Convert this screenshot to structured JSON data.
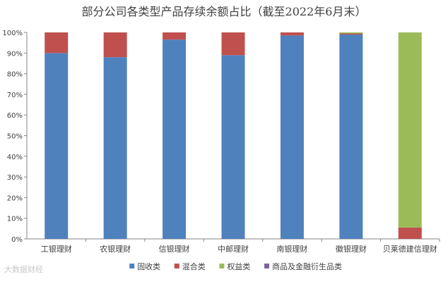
{
  "watermark": "大数据财经",
  "chart_data": {
    "type": "bar",
    "stacked": true,
    "title": "部分公司各类型产品存续余额占比（截至2022年6月末）",
    "xlabel": "",
    "ylabel": "",
    "ylim": [
      0,
      100
    ],
    "yticks": [
      "0%",
      "10%",
      "20%",
      "30%",
      "40%",
      "50%",
      "60%",
      "70%",
      "80%",
      "90%",
      "100%"
    ],
    "grid": false,
    "legend_position": "bottom",
    "categories": [
      "工银理财",
      "农银理财",
      "信银理财",
      "中邮理财",
      "南银理财",
      "徽银理财",
      "贝莱德建信理财"
    ],
    "series": [
      {
        "name": "固收类",
        "color": "#4f81bd",
        "values": [
          90,
          88,
          96.5,
          89,
          98.5,
          99,
          0
        ]
      },
      {
        "name": "混合类",
        "color": "#c0504d",
        "values": [
          10,
          12,
          3.5,
          11,
          1.5,
          0.5,
          5.5
        ]
      },
      {
        "name": "权益类",
        "color": "#9bbb59",
        "values": [
          0,
          0,
          0,
          0,
          0,
          0.5,
          94.5
        ]
      },
      {
        "name": "商品及金融衍生品类",
        "color": "#8064a2",
        "values": [
          0,
          0,
          0,
          0,
          0,
          0,
          0
        ]
      }
    ]
  }
}
